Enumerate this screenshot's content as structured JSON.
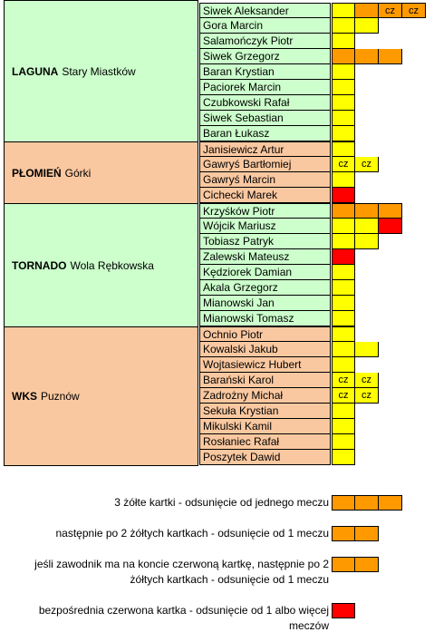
{
  "colors": {
    "green": "#ccffcc",
    "salmon": "#fac8a0",
    "yellow": "#ffff00",
    "orange": "#ff9900",
    "red": "#ff0000"
  },
  "teams": [
    {
      "name": "LAGUNA",
      "place": "Stary Miastków",
      "color": "green",
      "players": [
        {
          "name": "Siwek Aleksander",
          "cards": [
            [
              "yellow",
              ""
            ],
            [
              "orange",
              ""
            ],
            [
              "orange",
              "cz"
            ],
            [
              "orange",
              "cz"
            ]
          ]
        },
        {
          "name": "Gora Marcin",
          "cards": [
            [
              "yellow",
              ""
            ],
            [
              "yellow",
              ""
            ]
          ]
        },
        {
          "name": "Salamończyk Piotr",
          "cards": [
            [
              "yellow",
              ""
            ]
          ]
        },
        {
          "name": "Siwek Grzegorz",
          "cards": [
            [
              "orange",
              ""
            ],
            [
              "orange",
              ""
            ],
            [
              "orange",
              ""
            ]
          ]
        },
        {
          "name": "Baran Krystian",
          "cards": [
            [
              "yellow",
              ""
            ]
          ]
        },
        {
          "name": "Paciorek Marcin",
          "cards": [
            [
              "yellow",
              ""
            ]
          ]
        },
        {
          "name": "Czubkowski Rafał",
          "cards": [
            [
              "yellow",
              ""
            ]
          ]
        },
        {
          "name": "Siwek Sebastian",
          "cards": [
            [
              "yellow",
              ""
            ]
          ]
        },
        {
          "name": "Baran Łukasz",
          "cards": [
            [
              "yellow",
              ""
            ]
          ]
        }
      ]
    },
    {
      "name": "PŁOMIEŃ",
      "place": "Górki",
      "color": "salmon",
      "players": [
        {
          "name": "Janisiewicz Artur",
          "cards": [
            [
              "yellow",
              ""
            ]
          ]
        },
        {
          "name": "Gawryś Bartłomiej",
          "cards": [
            [
              "yellow",
              "cz"
            ],
            [
              "yellow",
              "cz"
            ]
          ]
        },
        {
          "name": "Gawryś Marcin",
          "cards": [
            [
              "yellow",
              ""
            ]
          ]
        },
        {
          "name": "Cichecki Marek",
          "cards": [
            [
              "red",
              ""
            ]
          ]
        }
      ]
    },
    {
      "name": "TORNADO",
      "place": "Wola Rębkowska",
      "color": "green",
      "players": [
        {
          "name": "Krzyśków Piotr",
          "cards": [
            [
              "orange",
              ""
            ],
            [
              "orange",
              ""
            ],
            [
              "orange",
              ""
            ]
          ]
        },
        {
          "name": "Wójcik Mariusz",
          "cards": [
            [
              "yellow",
              ""
            ],
            [
              "yellow",
              ""
            ],
            [
              "red",
              ""
            ]
          ]
        },
        {
          "name": "Tobiasz Patryk",
          "cards": [
            [
              "yellow",
              ""
            ],
            [
              "yellow",
              ""
            ]
          ]
        },
        {
          "name": "Zalewski Mateusz",
          "cards": [
            [
              "red",
              ""
            ]
          ]
        },
        {
          "name": "Kędziorek Damian",
          "cards": [
            [
              "yellow",
              ""
            ]
          ]
        },
        {
          "name": "Akala Grzegorz",
          "cards": [
            [
              "yellow",
              ""
            ]
          ]
        },
        {
          "name": "Mianowski Jan",
          "cards": [
            [
              "yellow",
              ""
            ]
          ]
        },
        {
          "name": "Mianowski Tomasz",
          "cards": [
            [
              "yellow",
              ""
            ]
          ]
        }
      ]
    },
    {
      "name": "WKS",
      "place": "Puznów",
      "color": "salmon",
      "players": [
        {
          "name": "Ochnio Piotr",
          "cards": [
            [
              "yellow",
              ""
            ]
          ]
        },
        {
          "name": "Kowalski Jakub",
          "cards": [
            [
              "yellow",
              ""
            ],
            [
              "yellow",
              ""
            ]
          ]
        },
        {
          "name": "Wojtasiewicz Hubert",
          "cards": [
            [
              "yellow",
              ""
            ]
          ]
        },
        {
          "name": "Barański Karol",
          "cards": [
            [
              "yellow",
              "cz"
            ],
            [
              "yellow",
              "cz"
            ]
          ]
        },
        {
          "name": "Zadrożny Michał",
          "cards": [
            [
              "yellow",
              "cz"
            ],
            [
              "yellow",
              "cz"
            ]
          ]
        },
        {
          "name": "Sekuła Krystian",
          "cards": [
            [
              "yellow",
              ""
            ]
          ]
        },
        {
          "name": "Mikulski Kamil",
          "cards": [
            [
              "yellow",
              ""
            ]
          ]
        },
        {
          "name": "Rosłaniec Rafał",
          "cards": [
            [
              "yellow",
              ""
            ]
          ]
        },
        {
          "name": "Poszytek Dawid",
          "cards": [
            [
              "yellow",
              ""
            ]
          ]
        }
      ]
    }
  ],
  "legend": [
    {
      "lines": [
        "3 żółte kartki - odsunięcie od jednego meczu"
      ],
      "cells": [
        "orange",
        "orange",
        "orange"
      ]
    },
    {
      "lines": [
        "następnie po 2 żółtych kartkach - odsunięcie od 1 meczu"
      ],
      "cells": [
        "orange",
        "orange"
      ]
    },
    {
      "lines": [
        "jeśli zawodnik ma na koncie czerwoną kartkę, następnie po 2",
        "żółtych kartkach - odsunięcie od 1 meczu"
      ],
      "cells": [
        "orange",
        "orange"
      ]
    },
    {
      "lines": [
        "bezpośrednia czerwona kartka - odsunięcie od 1 albo więcej",
        "meczów"
      ],
      "cells": [
        "red"
      ]
    }
  ]
}
